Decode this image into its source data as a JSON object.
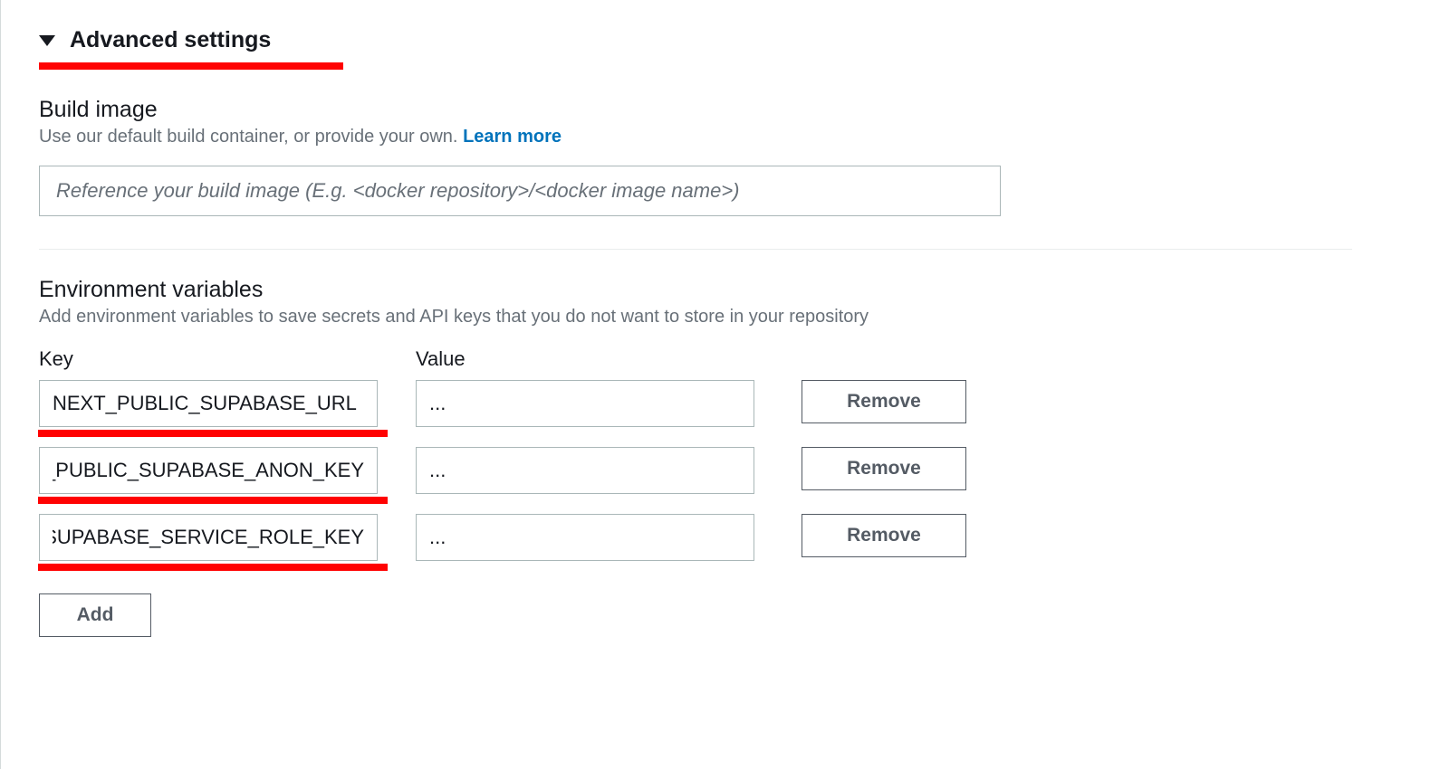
{
  "header": {
    "title": "Advanced settings",
    "highlight_color": "#ff0202"
  },
  "build_image": {
    "title": "Build image",
    "description": "Use our default build container, or provide your own.",
    "learn_more": "Learn more",
    "placeholder": "Reference your build image (E.g. <docker repository>/<docker image name>)",
    "value": ""
  },
  "env": {
    "title": "Environment variables",
    "description": "Add environment variables to save secrets and API keys that you do not want to store in your repository",
    "columns": {
      "key": "Key",
      "value": "Value"
    },
    "rows": [
      {
        "key": "NEXT_PUBLIC_SUPABASE_URL",
        "value": "...",
        "remove": "Remove"
      },
      {
        "key": "NEXT_PUBLIC_SUPABASE_ANON_KEY",
        "value": "...",
        "remove": "Remove"
      },
      {
        "key": "SUPABASE_SERVICE_ROLE_KEY",
        "value": "...",
        "remove": "Remove"
      }
    ],
    "add": "Add"
  },
  "colors": {
    "text": "#16191f",
    "muted": "#687078",
    "link": "#0073bb",
    "border": "#aab7b8",
    "button_border": "#545b64",
    "highlight": "#ff0202",
    "divider": "#eaeded",
    "background": "#ffffff"
  }
}
